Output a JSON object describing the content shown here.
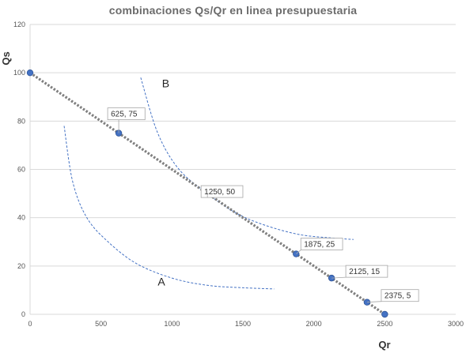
{
  "chart_data": {
    "type": "scatter",
    "title": "combinaciones  Qs/Qr en linea presupuestaria",
    "xlabel": "Qr",
    "ylabel": "Qs",
    "xlim": [
      0,
      3000
    ],
    "ylim": [
      0,
      120
    ],
    "x_ticks": [
      "0",
      "500",
      "1000",
      "1500",
      "2000",
      "2500",
      "3000"
    ],
    "y_ticks": [
      "0",
      "20",
      "40",
      "60",
      "80",
      "100",
      "120"
    ],
    "grid": "horizontal",
    "colors": {
      "points": "#4472c4",
      "trendline": "#7f7f7f",
      "curves": "#4472c4",
      "grid": "#d9d9d9"
    },
    "series": [
      {
        "points": [
          {
            "x": 0,
            "y": 100,
            "label": ""
          },
          {
            "x": 625,
            "y": 75,
            "label": "625, 75"
          },
          {
            "x": 1250,
            "y": 50,
            "label": "1250, 50"
          },
          {
            "x": 1875,
            "y": 25,
            "label": "1875, 25"
          },
          {
            "x": 2125,
            "y": 15,
            "label": "2125, 15"
          },
          {
            "x": 2375,
            "y": 5,
            "label": "2375, 5"
          },
          {
            "x": 2500,
            "y": 0,
            "label": ""
          }
        ]
      }
    ],
    "trendline": {
      "style": "dotted",
      "from": [
        0,
        100
      ],
      "to": [
        2500,
        0
      ]
    },
    "curves": [
      {
        "label": "A",
        "style": "dashed",
        "points": [
          [
            240,
            78
          ],
          [
            300,
            55
          ],
          [
            400,
            40
          ],
          [
            550,
            30
          ],
          [
            750,
            21
          ],
          [
            1000,
            15
          ],
          [
            1250,
            12
          ],
          [
            1500,
            11
          ],
          [
            1720,
            10.5
          ]
        ]
      },
      {
        "label": "B",
        "style": "dashed",
        "points": [
          [
            780,
            98
          ],
          [
            900,
            75
          ],
          [
            1050,
            60
          ],
          [
            1250,
            50
          ],
          [
            1450,
            42
          ],
          [
            1650,
            37
          ],
          [
            1900,
            33
          ],
          [
            2150,
            31.5
          ],
          [
            2280,
            31
          ]
        ]
      }
    ]
  }
}
